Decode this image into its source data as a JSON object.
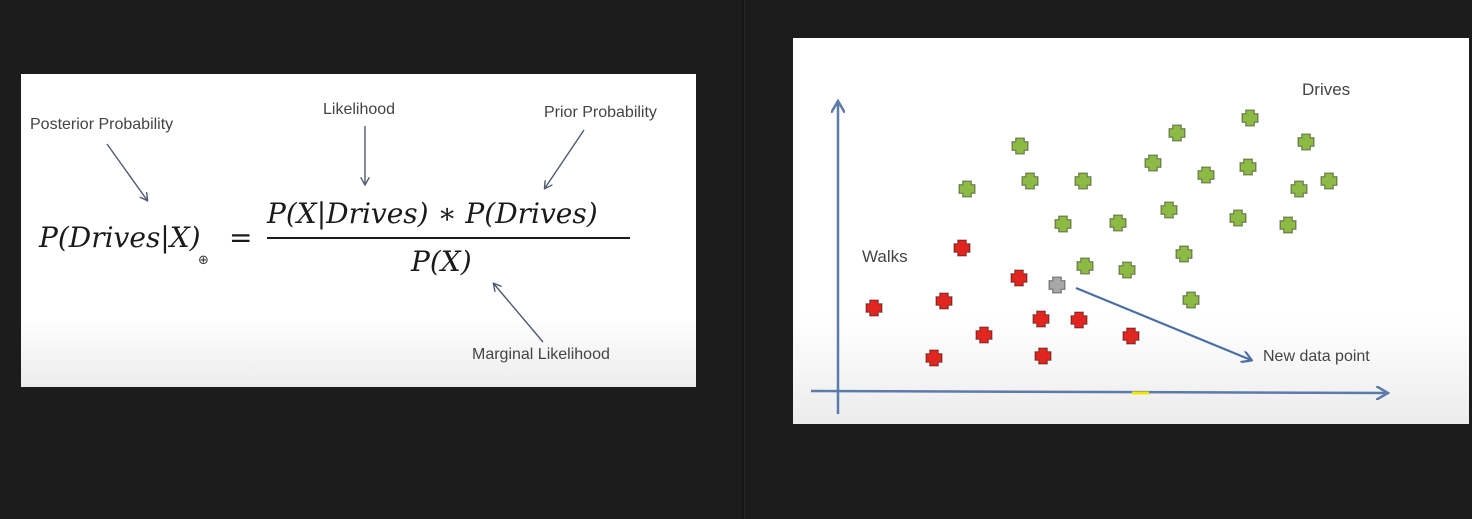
{
  "formula_slide": {
    "labels": {
      "posterior": "Posterior Probability",
      "likelihood": "Likelihood",
      "prior": "Prior Probability",
      "marginal": "Marginal Likelihood"
    },
    "equation": {
      "lhs": "P(Drives|X)",
      "equals": "=",
      "numerator": "P(X|Drives) ∗ P(Drives)",
      "denominator": "P(X)"
    },
    "cursor_icon": "zoom-cursor-icon"
  },
  "plot_slide": {
    "labels": {
      "drives": "Drives",
      "walks": "Walks",
      "new_point": "New data point"
    },
    "colors": {
      "drives": "#8cba45",
      "walks": "#e0261f",
      "new_point": "#a8a8a8",
      "axis": "#5b7bab",
      "arrow": "#4a6fa5",
      "axis_mark": "#f2e600"
    },
    "icons": {
      "point": "plus-icon"
    }
  }
}
